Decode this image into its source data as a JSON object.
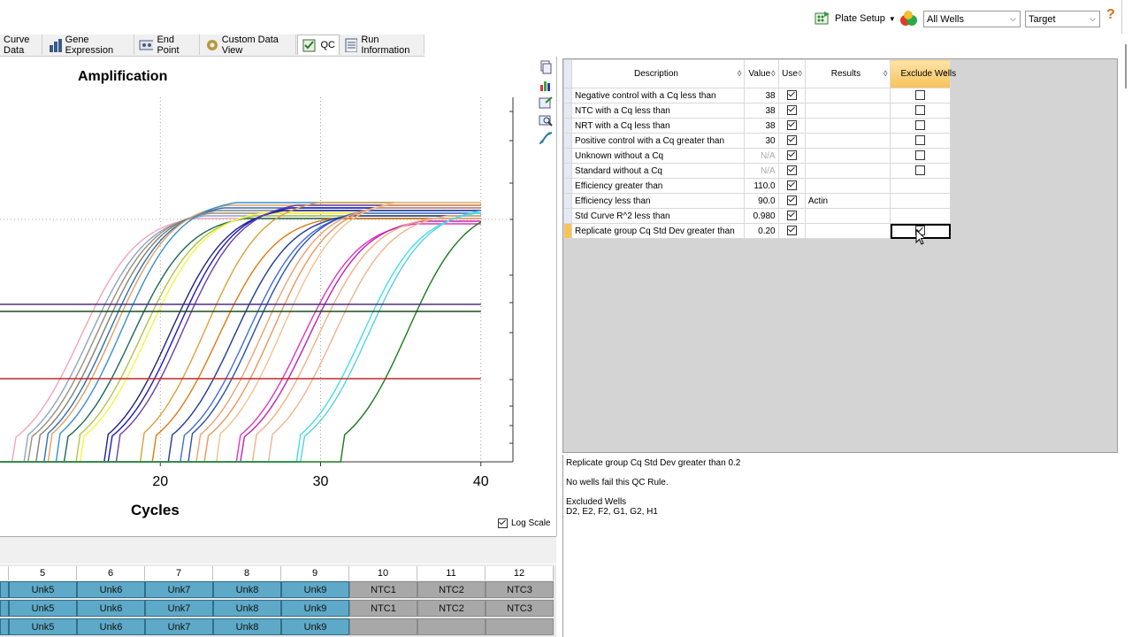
{
  "toolbar": {
    "plate_setup_label": "Plate Setup",
    "well_filter_value": "All Wells",
    "view_by_value": "Target",
    "help_label": "?"
  },
  "tabs": [
    {
      "label": "Curve Data",
      "active": false
    },
    {
      "label": "Gene Expression",
      "active": false
    },
    {
      "label": "End Point",
      "active": false
    },
    {
      "label": "Custom Data View",
      "active": false
    },
    {
      "label": "QC",
      "active": true
    },
    {
      "label": "Run Information",
      "active": false
    }
  ],
  "chart": {
    "title": "Amplification",
    "xlabel": "Cycles",
    "log_scale_label": "Log Scale",
    "log_scale_checked": true
  },
  "chart_data": {
    "type": "line",
    "title": "Amplification",
    "xlabel": "Cycles",
    "ylabel": "",
    "x_ticks": [
      20,
      30,
      40
    ],
    "xlim": [
      10,
      42
    ],
    "log_scale": true,
    "grid": true,
    "threshold_lines": [
      {
        "color": "#4b2e83"
      },
      {
        "color": "#1e4d1e"
      },
      {
        "color": "#c0282a"
      }
    ],
    "series": [
      {
        "color": "#f4a3b8",
        "onset": 11.0
      },
      {
        "color": "#8aa4c8",
        "onset": 11.6
      },
      {
        "color": "#9b8e7a",
        "onset": 12.0
      },
      {
        "color": "#7f7f7f",
        "onset": 12.4
      },
      {
        "color": "#2f6fb4",
        "onset": 12.8
      },
      {
        "color": "#e0a060",
        "onset": 13.1
      },
      {
        "color": "#3b8fcf",
        "onset": 13.6
      },
      {
        "color": "#1d6a4f",
        "onset": 14.2
      },
      {
        "color": "#b0c34a",
        "onset": 14.8
      },
      {
        "color": "#f5f542",
        "onset": 15.2
      },
      {
        "color": "#23237a",
        "onset": 16.6
      },
      {
        "color": "#1a1acb",
        "onset": 17.0
      },
      {
        "color": "#6b3fa0",
        "onset": 17.4
      },
      {
        "color": "#d8a23a",
        "onset": 18.8
      },
      {
        "color": "#e07a10",
        "onset": 19.6
      },
      {
        "color": "#1f3a93",
        "onset": 20.6
      },
      {
        "color": "#3f6fdf",
        "onset": 21.4
      },
      {
        "color": "#2a4fb0",
        "onset": 21.8
      },
      {
        "color": "#f0a070",
        "onset": 22.4
      },
      {
        "color": "#e8985a",
        "onset": 23.0
      },
      {
        "color": "#f4c090",
        "onset": 23.6
      },
      {
        "color": "#e034c8",
        "onset": 24.8
      },
      {
        "color": "#c020b0",
        "onset": 25.2
      },
      {
        "color": "#f4b080",
        "onset": 25.8
      },
      {
        "color": "#eeb48c",
        "onset": 26.8
      },
      {
        "color": "#40e0e8",
        "onset": 28.6
      },
      {
        "color": "#5ad0e0",
        "onset": 29.0
      },
      {
        "color": "#1a7a1a",
        "onset": 31.4
      }
    ]
  },
  "plate": {
    "columns": [
      "5",
      "6",
      "7",
      "8",
      "9",
      "10",
      "11",
      "12"
    ],
    "rows": [
      [
        "Unk5",
        "Unk6",
        "Unk7",
        "Unk8",
        "Unk9",
        "NTC1",
        "NTC2",
        "NTC3"
      ],
      [
        "Unk5",
        "Unk6",
        "Unk7",
        "Unk8",
        "Unk9",
        "NTC1",
        "NTC2",
        "NTC3"
      ],
      [
        "Unk5",
        "Unk6",
        "Unk7",
        "Unk8",
        "Unk9",
        "",
        "",
        ""
      ]
    ]
  },
  "qc_table": {
    "headers": {
      "description": "Description",
      "value": "Value",
      "use": "Use",
      "results": "Results",
      "exclude": "Exclude Wells"
    },
    "rows": [
      {
        "description": "Negative control with a Cq less than",
        "value": "38",
        "value_na": false,
        "use": true,
        "results": "",
        "exclude": false,
        "has_exclude": true
      },
      {
        "description": "NTC with a Cq less than",
        "value": "38",
        "value_na": false,
        "use": true,
        "results": "",
        "exclude": false,
        "has_exclude": true
      },
      {
        "description": "NRT with a Cq less than",
        "value": "38",
        "value_na": false,
        "use": true,
        "results": "",
        "exclude": false,
        "has_exclude": true
      },
      {
        "description": "Positive control with a Cq greater than",
        "value": "30",
        "value_na": false,
        "use": true,
        "results": "",
        "exclude": false,
        "has_exclude": true
      },
      {
        "description": "Unknown without a Cq",
        "value": "N/A",
        "value_na": true,
        "use": true,
        "results": "",
        "exclude": false,
        "has_exclude": true
      },
      {
        "description": "Standard without a Cq",
        "value": "N/A",
        "value_na": true,
        "use": true,
        "results": "",
        "exclude": false,
        "has_exclude": true
      },
      {
        "description": "Efficiency greater than",
        "value": "110.0",
        "value_na": false,
        "use": true,
        "results": "",
        "exclude": false,
        "has_exclude": false
      },
      {
        "description": "Efficiency less than",
        "value": "90.0",
        "value_na": false,
        "use": true,
        "results": "Actin",
        "exclude": false,
        "has_exclude": false
      },
      {
        "description": "Std Curve R^2 less than",
        "value": "0.980",
        "value_na": false,
        "use": true,
        "results": "",
        "exclude": false,
        "has_exclude": false
      },
      {
        "description": "Replicate group Cq Std Dev greater than",
        "value": "0.20",
        "value_na": false,
        "use": true,
        "results": "",
        "exclude": true,
        "has_exclude": true,
        "selected": true
      }
    ]
  },
  "detail": {
    "rule": "Replicate group Cq Std Dev greater than 0.2",
    "status": "No wells fail this QC Rule.",
    "excluded_heading": "Excluded Wells",
    "excluded_list": "D2, E2, F2, G1, G2, H1"
  },
  "colors": {
    "exclude_header": "#f6c35a",
    "unknown_well": "#5ea9c7",
    "ntc_well": "#a8a8a8",
    "pane_bg": "#d4d4d4"
  }
}
